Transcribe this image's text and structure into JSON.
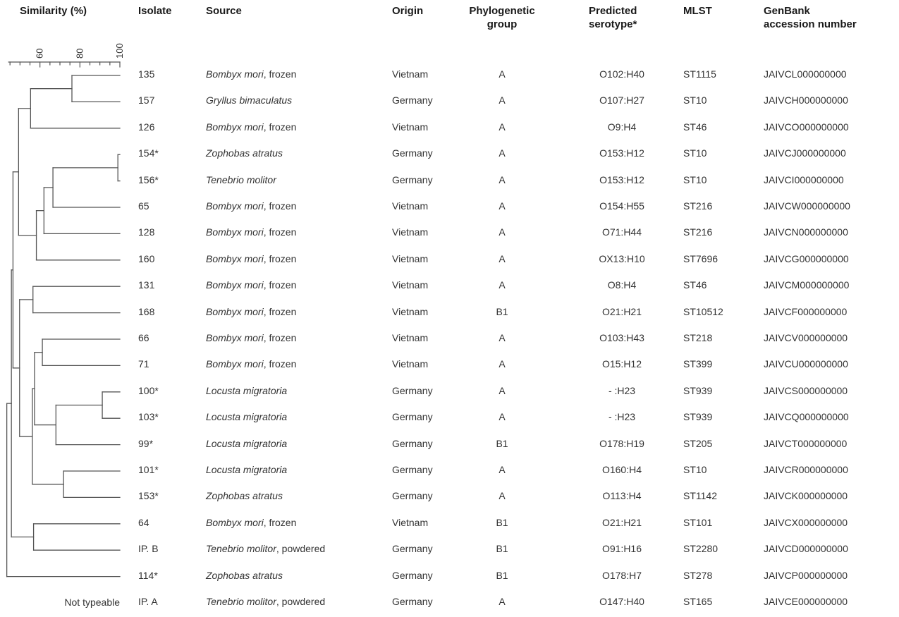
{
  "header": {
    "similarity": "Similarity (%)",
    "isolate": "Isolate",
    "source": "Source",
    "origin": "Origin",
    "phylo_line1": "Phylogenetic",
    "phylo_line2": "group",
    "serotype_line1": "Predicted",
    "serotype_line2": "serotype*",
    "mlst": "MLST",
    "genbank_line1": "GenBank",
    "genbank_line2": "accession number"
  },
  "not_typeable": "Not typeable",
  "colors": {
    "tree_line": "#555555",
    "axis_line": "#555555",
    "text": "#323232",
    "header_text": "#1a1a1a",
    "background": "#ffffff"
  },
  "table": {
    "rows": [
      {
        "isolate": "135",
        "species": "Bombyx mori",
        "source_suffix": ", frozen",
        "origin": "Vietnam",
        "group": "A",
        "serotype": "O102:H40",
        "mlst": "ST1115",
        "genbank": "JAIVCL000000000"
      },
      {
        "isolate": "157",
        "species": "Gryllus bimaculatus",
        "source_suffix": "",
        "origin": "Germany",
        "group": "A",
        "serotype": "O107:H27",
        "mlst": "ST10",
        "genbank": "JAIVCH000000000"
      },
      {
        "isolate": "126",
        "species": "Bombyx mori",
        "source_suffix": ", frozen",
        "origin": "Vietnam",
        "group": "A",
        "serotype": "O9:H4",
        "mlst": "ST46",
        "genbank": "JAIVCO000000000"
      },
      {
        "isolate": "154*",
        "species": "Zophobas atratus",
        "source_suffix": "",
        "origin": "Germany",
        "group": "A",
        "serotype": "O153:H12",
        "mlst": "ST10",
        "genbank": "JAIVCJ000000000"
      },
      {
        "isolate": "156*",
        "species": "Tenebrio molitor",
        "source_suffix": "",
        "origin": "Germany",
        "group": "A",
        "serotype": "O153:H12",
        "mlst": "ST10",
        "genbank": "JAIVCI000000000"
      },
      {
        "isolate": "65",
        "species": "Bombyx mori",
        "source_suffix": ", frozen",
        "origin": "Vietnam",
        "group": "A",
        "serotype": "O154:H55",
        "mlst": "ST216",
        "genbank": "JAIVCW000000000"
      },
      {
        "isolate": "128",
        "species": "Bombyx mori",
        "source_suffix": ", frozen",
        "origin": "Vietnam",
        "group": "A",
        "serotype": "O71:H44",
        "mlst": "ST216",
        "genbank": "JAIVCN000000000"
      },
      {
        "isolate": "160",
        "species": "Bombyx mori",
        "source_suffix": ", frozen",
        "origin": "Vietnam",
        "group": "A",
        "serotype": "OX13:H10",
        "mlst": "ST7696",
        "genbank": "JAIVCG000000000"
      },
      {
        "isolate": "131",
        "species": "Bombyx mori",
        "source_suffix": ", frozen",
        "origin": "Vietnam",
        "group": "A",
        "serotype": "O8:H4",
        "mlst": "ST46",
        "genbank": "JAIVCM000000000"
      },
      {
        "isolate": "168",
        "species": "Bombyx mori",
        "source_suffix": ", frozen",
        "origin": "Vietnam",
        "group": "B1",
        "serotype": "O21:H21",
        "mlst": "ST10512",
        "genbank": "JAIVCF000000000"
      },
      {
        "isolate": "66",
        "species": "Bombyx mori",
        "source_suffix": ", frozen",
        "origin": "Vietnam",
        "group": "A",
        "serotype": "O103:H43",
        "mlst": "ST218",
        "genbank": "JAIVCV000000000"
      },
      {
        "isolate": "71",
        "species": "Bombyx mori",
        "source_suffix": ", frozen",
        "origin": "Vietnam",
        "group": "A",
        "serotype": "O15:H12",
        "mlst": "ST399",
        "genbank": "JAIVCU000000000"
      },
      {
        "isolate": "100*",
        "species": "Locusta migratoria",
        "source_suffix": "",
        "origin": "Germany",
        "group": "A",
        "serotype": "- :H23",
        "mlst": "ST939",
        "genbank": "JAIVCS000000000"
      },
      {
        "isolate": "103*",
        "species": "Locusta migratoria",
        "source_suffix": "",
        "origin": "Germany",
        "group": "A",
        "serotype": "- :H23",
        "mlst": "ST939",
        "genbank": "JAIVCQ000000000"
      },
      {
        "isolate": "99*",
        "species": "Locusta migratoria",
        "source_suffix": "",
        "origin": "Germany",
        "group": "B1",
        "serotype": "O178:H19",
        "mlst": "ST205",
        "genbank": "JAIVCT000000000"
      },
      {
        "isolate": "101*",
        "species": "Locusta migratoria",
        "source_suffix": "",
        "origin": "Germany",
        "group": "A",
        "serotype": "O160:H4",
        "mlst": "ST10",
        "genbank": "JAIVCR000000000"
      },
      {
        "isolate": "153*",
        "species": "Zophobas atratus",
        "source_suffix": "",
        "origin": "Germany",
        "group": "A",
        "serotype": "O113:H4",
        "mlst": "ST1142",
        "genbank": "JAIVCK000000000"
      },
      {
        "isolate": "64",
        "species": "Bombyx mori",
        "source_suffix": ", frozen",
        "origin": "Vietnam",
        "group": "B1",
        "serotype": "O21:H21",
        "mlst": "ST101",
        "genbank": "JAIVCX000000000"
      },
      {
        "isolate": "IP. B",
        "species": "Tenebrio molitor",
        "source_suffix": ", powdered",
        "origin": "Germany",
        "group": "B1",
        "serotype": "O91:H16",
        "mlst": "ST2280",
        "genbank": "JAIVCD000000000"
      },
      {
        "isolate": "114*",
        "species": "Zophobas atratus",
        "source_suffix": "",
        "origin": "Germany",
        "group": "B1",
        "serotype": "O178:H7",
        "mlst": "ST278",
        "genbank": "JAIVCP000000000"
      },
      {
        "isolate": "IP. A",
        "species": "Tenebrio molitor",
        "source_suffix": ", powdered",
        "origin": "Germany",
        "group": "A",
        "serotype": "O147:H40",
        "mlst": "ST165",
        "genbank": "JAIVCE000000000"
      }
    ]
  },
  "chart_data": {
    "type": "dendrogram",
    "title": "Similarity (%)",
    "axis": {
      "min": 45,
      "max": 100,
      "tick_step": 5,
      "labeled_ticks": [
        60,
        80,
        100
      ],
      "orientation": "horizontal, labels rotated 90deg"
    },
    "leaves": [
      "135",
      "157",
      "126",
      "154*",
      "156*",
      "65",
      "128",
      "160",
      "131",
      "168",
      "66",
      "71",
      "100*",
      "103*",
      "99*",
      "101*",
      "153*",
      "64",
      "IP. B",
      "114*"
    ],
    "untyped_leaf": "IP. A",
    "tree": {
      "s": 43.4,
      "c": [
        {
          "s": 45.7,
          "c": [
            {
              "s": 46.5,
              "c": [
                {
                  "s": 49.3,
                  "c": [
                    {
                      "s": 55.3,
                      "c": [
                        {
                          "s": 76.0,
                          "c": [
                            {
                              "leaf": 0
                            },
                            {
                              "leaf": 1
                            }
                          ]
                        },
                        {
                          "leaf": 2
                        }
                      ]
                    },
                    {
                      "s": 58.2,
                      "c": [
                        {
                          "s": 62.0,
                          "c": [
                            {
                              "s": 66.5,
                              "c": [
                                {
                                  "s": 99.0,
                                  "c": [
                                    {
                                      "leaf": 3
                                    },
                                    {
                                      "leaf": 4
                                    }
                                  ]
                                },
                                {
                                  "leaf": 5
                                }
                              ]
                            },
                            {
                              "leaf": 6
                            }
                          ]
                        },
                        {
                          "leaf": 7
                        }
                      ]
                    }
                  ]
                },
                {
                  "s": 49.8,
                  "c": [
                    {
                      "s": 56.5,
                      "c": [
                        {
                          "leaf": 8
                        },
                        {
                          "leaf": 9
                        }
                      ]
                    },
                    {
                      "s": 56.2,
                      "c": [
                        {
                          "s": 57.3,
                          "c": [
                            {
                              "s": 61.2,
                              "c": [
                                {
                                  "leaf": 10
                                },
                                {
                                  "leaf": 11
                                }
                              ]
                            },
                            {
                              "s": 68.0,
                              "c": [
                                {
                                  "s": 91.2,
                                  "c": [
                                    {
                                      "leaf": 12
                                    },
                                    {
                                      "leaf": 13
                                    }
                                  ]
                                },
                                {
                                  "leaf": 14
                                }
                              ]
                            }
                          ]
                        },
                        {
                          "s": 71.8,
                          "c": [
                            {
                              "leaf": 15
                            },
                            {
                              "leaf": 16
                            }
                          ]
                        }
                      ]
                    }
                  ]
                }
              ]
            },
            {
              "s": 56.8,
              "c": [
                {
                  "leaf": 17
                },
                {
                  "leaf": 18
                }
              ]
            }
          ]
        },
        {
          "leaf": 19
        }
      ]
    }
  }
}
